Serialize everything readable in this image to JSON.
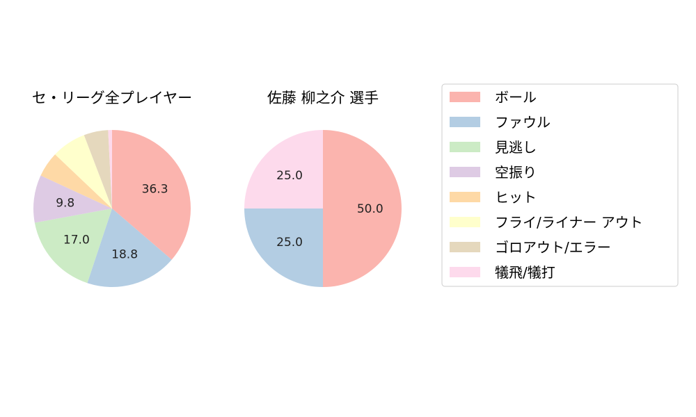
{
  "chart_data": [
    {
      "type": "pie",
      "title": "セ・リーグ全プレイヤー",
      "start_angle": 90,
      "direction": "clockwise",
      "categories": [
        "ボール",
        "ファウル",
        "見逃し",
        "空振り",
        "ヒット",
        "フライ/ライナー アウト",
        "ゴロアウト/エラー",
        "犠飛/犠打"
      ],
      "values": [
        36.3,
        18.8,
        17.0,
        9.8,
        5.2,
        7.1,
        5.0,
        0.8
      ],
      "labels": [
        "36.3",
        "18.8",
        "17.0",
        "9.8",
        "",
        "",
        "",
        ""
      ]
    },
    {
      "type": "pie",
      "title": "佐藤 柳之介  選手",
      "start_angle": 90,
      "direction": "clockwise",
      "categories": [
        "ボール",
        "ファウル",
        "見逃し",
        "空振り",
        "ヒット",
        "フライ/ライナー アウト",
        "ゴロアウト/エラー",
        "犠飛/犠打"
      ],
      "values": [
        50.0,
        25.0,
        0,
        0,
        0,
        0,
        0,
        25.0
      ],
      "labels": [
        "50.0",
        "25.0",
        "",
        "",
        "",
        "",
        "",
        "25.0"
      ]
    }
  ],
  "legend": {
    "placement": "right",
    "entries": [
      "ボール",
      "ファウル",
      "見逃し",
      "空振り",
      "ヒット",
      "フライ/ライナー アウト",
      "ゴロアウト/エラー",
      "犠飛/犠打"
    ]
  },
  "colors": [
    "#fbb4ae",
    "#b3cde3",
    "#ccebc5",
    "#decbe4",
    "#fed9a6",
    "#ffffcc",
    "#e5d8bd",
    "#fddaec"
  ]
}
